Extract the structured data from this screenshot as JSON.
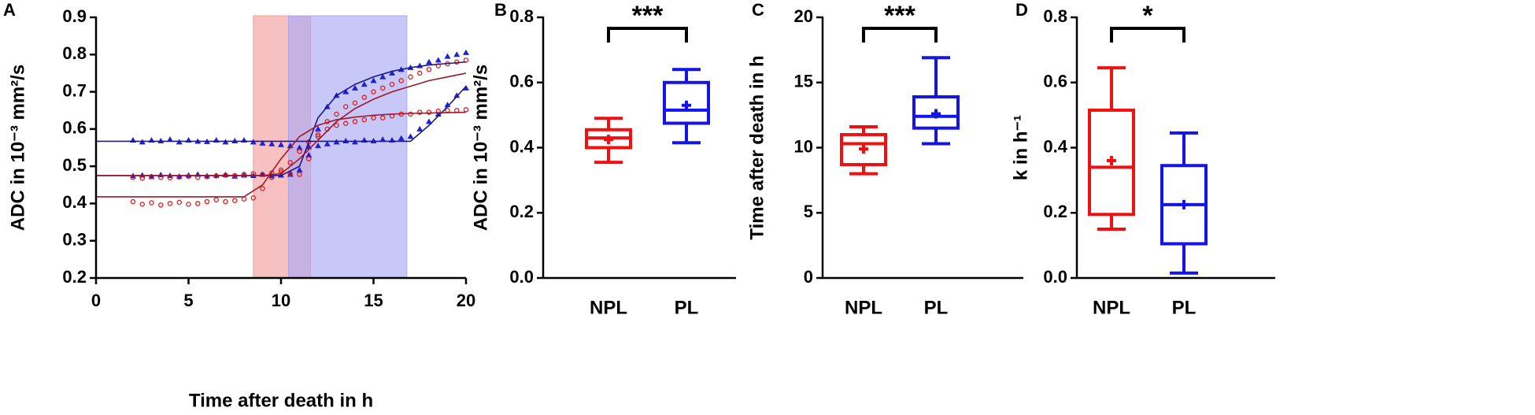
{
  "chart_data": [
    {
      "type": "scatter",
      "panel_label": "A",
      "xlabel": "Time after death in h",
      "ylabel": "ADC in 10⁻³ mm²/s",
      "xlim": [
        0,
        20
      ],
      "ylim": [
        0.2,
        0.9
      ],
      "xticks": [
        0,
        5,
        10,
        15,
        20
      ],
      "yticks": [
        0.2,
        0.3,
        0.4,
        0.5,
        0.6,
        0.7,
        0.8,
        0.9
      ],
      "regions": [
        {
          "xlim": [
            8.5,
            11.6
          ],
          "color": "#f4a0a0"
        },
        {
          "xlim": [
            10.4,
            16.8
          ],
          "color": "#a9a9f5"
        }
      ],
      "series": [
        {
          "color": "#1f1fd6",
          "marker": "triangle",
          "x": [
            2,
            2.5,
            3,
            3.5,
            4,
            4.5,
            5,
            5.5,
            6,
            6.5,
            7,
            7.5,
            8,
            8.5,
            9,
            9.5,
            10,
            10.5,
            11,
            11.5,
            12,
            12.5,
            13,
            13.5,
            14,
            14.5,
            15,
            15.5,
            16,
            16.5,
            17,
            17.5,
            18,
            18.5,
            19,
            19.5,
            20
          ],
          "values": [
            0.57,
            0.565,
            0.57,
            0.568,
            0.572,
            0.565,
            0.57,
            0.567,
            0.566,
            0.57,
            0.565,
            0.568,
            0.57,
            0.565,
            0.562,
            0.56,
            0.558,
            0.555,
            0.55,
            0.552,
            0.555,
            0.56,
            0.565,
            0.568,
            0.565,
            0.57,
            0.568,
            0.572,
            0.57,
            0.575,
            0.58,
            0.6,
            0.62,
            0.64,
            0.665,
            0.69,
            0.71
          ]
        },
        {
          "color": "#1f1fd6",
          "marker": "triangle",
          "x": [
            2,
            2.5,
            3,
            3.5,
            4,
            4.5,
            5,
            5.5,
            6,
            6.5,
            7,
            7.5,
            8,
            8.5,
            9,
            9.5,
            10,
            10.5,
            11,
            11.5,
            12,
            12.5,
            13,
            13.5,
            14,
            14.5,
            15,
            15.5,
            16,
            16.5,
            17,
            17.5,
            18,
            18.5,
            19,
            19.5,
            20
          ],
          "values": [
            0.474,
            0.476,
            0.472,
            0.477,
            0.475,
            0.473,
            0.476,
            0.478,
            0.474,
            0.475,
            0.477,
            0.473,
            0.476,
            0.475,
            0.478,
            0.474,
            0.476,
            0.478,
            0.49,
            0.53,
            0.6,
            0.66,
            0.69,
            0.7,
            0.71,
            0.72,
            0.73,
            0.74,
            0.75,
            0.76,
            0.765,
            0.77,
            0.78,
            0.785,
            0.795,
            0.8,
            0.805
          ]
        },
        {
          "color": "#e01b1b",
          "marker": "circle",
          "x": [
            2,
            2.5,
            3,
            3.5,
            4,
            4.5,
            5,
            5.5,
            6,
            6.5,
            7,
            7.5,
            8,
            8.5,
            9,
            9.5,
            10,
            10.5,
            11,
            11.5,
            12,
            12.5,
            13,
            13.5,
            14,
            14.5,
            15,
            15.5,
            16,
            16.5,
            17,
            17.5,
            18,
            18.5,
            19,
            19.5,
            20
          ],
          "values": [
            0.405,
            0.398,
            0.402,
            0.396,
            0.4,
            0.403,
            0.398,
            0.4,
            0.405,
            0.41,
            0.405,
            0.408,
            0.412,
            0.415,
            0.44,
            0.47,
            0.49,
            0.51,
            0.54,
            0.565,
            0.585,
            0.6,
            0.61,
            0.615,
            0.62,
            0.625,
            0.63,
            0.63,
            0.635,
            0.64,
            0.64,
            0.645,
            0.645,
            0.648,
            0.65,
            0.65,
            0.652
          ]
        },
        {
          "color": "#e01b1b",
          "marker": "circle",
          "x": [
            2,
            2.5,
            3,
            3.5,
            4,
            4.5,
            5,
            5.5,
            6,
            6.5,
            7,
            7.5,
            8,
            8.5,
            9,
            9.5,
            10,
            10.5,
            11,
            11.5,
            12,
            12.5,
            13,
            13.5,
            14,
            14.5,
            15,
            15.5,
            16,
            16.5,
            17,
            17.5,
            18,
            18.5,
            19,
            19.5,
            20
          ],
          "values": [
            0.47,
            0.468,
            0.472,
            0.47,
            0.469,
            0.471,
            0.473,
            0.47,
            0.472,
            0.474,
            0.476,
            0.475,
            0.478,
            0.48,
            0.478,
            0.482,
            0.485,
            0.48,
            0.478,
            0.52,
            0.58,
            0.62,
            0.64,
            0.66,
            0.67,
            0.685,
            0.7,
            0.71,
            0.72,
            0.73,
            0.74,
            0.75,
            0.76,
            0.77,
            0.775,
            0.78,
            0.785
          ]
        },
        {
          "color": "#1a1a8c",
          "marker": "line",
          "x": [
            0,
            1,
            2,
            3,
            4,
            5,
            6,
            7,
            8,
            9,
            10,
            11,
            12,
            13,
            14,
            15,
            16,
            17,
            18,
            19,
            20
          ],
          "values": [
            0.567,
            0.567,
            0.567,
            0.567,
            0.567,
            0.567,
            0.567,
            0.567,
            0.567,
            0.567,
            0.567,
            0.567,
            0.567,
            0.567,
            0.567,
            0.567,
            0.567,
            0.567,
            0.61,
            0.66,
            0.715
          ]
        },
        {
          "color": "#1a1a8c",
          "marker": "line",
          "x": [
            0,
            1,
            2,
            3,
            4,
            5,
            6,
            7,
            8,
            9,
            10,
            11,
            12,
            13,
            14,
            15,
            16,
            17,
            18,
            19,
            20
          ],
          "values": [
            0.475,
            0.475,
            0.475,
            0.475,
            0.475,
            0.475,
            0.475,
            0.475,
            0.475,
            0.475,
            0.475,
            0.5,
            0.63,
            0.69,
            0.72,
            0.74,
            0.755,
            0.765,
            0.772,
            0.776,
            0.78
          ]
        },
        {
          "color": "#a0182a",
          "marker": "line",
          "x": [
            0,
            1,
            2,
            3,
            4,
            5,
            6,
            7,
            8,
            9,
            10,
            11,
            12,
            13,
            14,
            15,
            16,
            17,
            18,
            19,
            20
          ],
          "values": [
            0.418,
            0.418,
            0.418,
            0.418,
            0.418,
            0.418,
            0.418,
            0.418,
            0.418,
            0.45,
            0.52,
            0.58,
            0.61,
            0.625,
            0.632,
            0.637,
            0.64,
            0.642,
            0.643,
            0.644,
            0.645
          ]
        },
        {
          "color": "#a0182a",
          "marker": "line",
          "x": [
            0,
            1,
            2,
            3,
            4,
            5,
            6,
            7,
            8,
            9,
            10,
            11,
            12,
            13,
            14,
            15,
            16,
            17,
            18,
            19,
            20
          ],
          "values": [
            0.475,
            0.475,
            0.475,
            0.475,
            0.475,
            0.475,
            0.475,
            0.475,
            0.475,
            0.475,
            0.48,
            0.52,
            0.57,
            0.62,
            0.655,
            0.68,
            0.7,
            0.715,
            0.73,
            0.74,
            0.75
          ]
        }
      ]
    },
    {
      "type": "box",
      "panel_label": "B",
      "ylabel": "ADC in 10⁻³ mm²/s",
      "categories": [
        "NPL",
        "PL"
      ],
      "significance": "***",
      "ylim": [
        0,
        0.8
      ],
      "yticks": [
        {
          "value": 0,
          "label": "0.0"
        },
        0.2,
        0.4,
        0.6,
        0.8
      ],
      "boxes": [
        {
          "color": "#f01010",
          "min": 0.355,
          "q1": 0.4,
          "median": 0.43,
          "q3": 0.455,
          "max": 0.49,
          "mean": 0.425
        },
        {
          "color": "#1414e6",
          "min": 0.415,
          "q1": 0.475,
          "median": 0.515,
          "q3": 0.6,
          "max": 0.64,
          "mean": 0.53
        }
      ]
    },
    {
      "type": "box",
      "panel_label": "C",
      "ylabel": "Time after death in h",
      "categories": [
        "NPL",
        "PL"
      ],
      "significance": "***",
      "ylim": [
        0,
        20
      ],
      "yticks": [
        0,
        5,
        10,
        15,
        20
      ],
      "boxes": [
        {
          "color": "#f01010",
          "min": 8.0,
          "q1": 8.7,
          "median": 10.3,
          "q3": 11.0,
          "max": 11.6,
          "mean": 9.9
        },
        {
          "color": "#1414e6",
          "min": 10.3,
          "q1": 11.5,
          "median": 12.4,
          "q3": 13.9,
          "max": 16.9,
          "mean": 12.6
        }
      ]
    },
    {
      "type": "box",
      "panel_label": "D",
      "ylabel": "k in h⁻¹",
      "categories": [
        "NPL",
        "PL"
      ],
      "significance": "*",
      "ylim": [
        0,
        0.8
      ],
      "yticks": [
        {
          "value": 0,
          "label": "0.0"
        },
        0.2,
        0.4,
        0.6,
        0.8
      ],
      "boxes": [
        {
          "color": "#f01010",
          "min": 0.15,
          "q1": 0.195,
          "median": 0.34,
          "q3": 0.515,
          "max": 0.645,
          "mean": 0.36
        },
        {
          "color": "#1414e6",
          "min": 0.015,
          "q1": 0.105,
          "median": 0.225,
          "q3": 0.345,
          "max": 0.445,
          "mean": 0.225
        }
      ]
    }
  ]
}
